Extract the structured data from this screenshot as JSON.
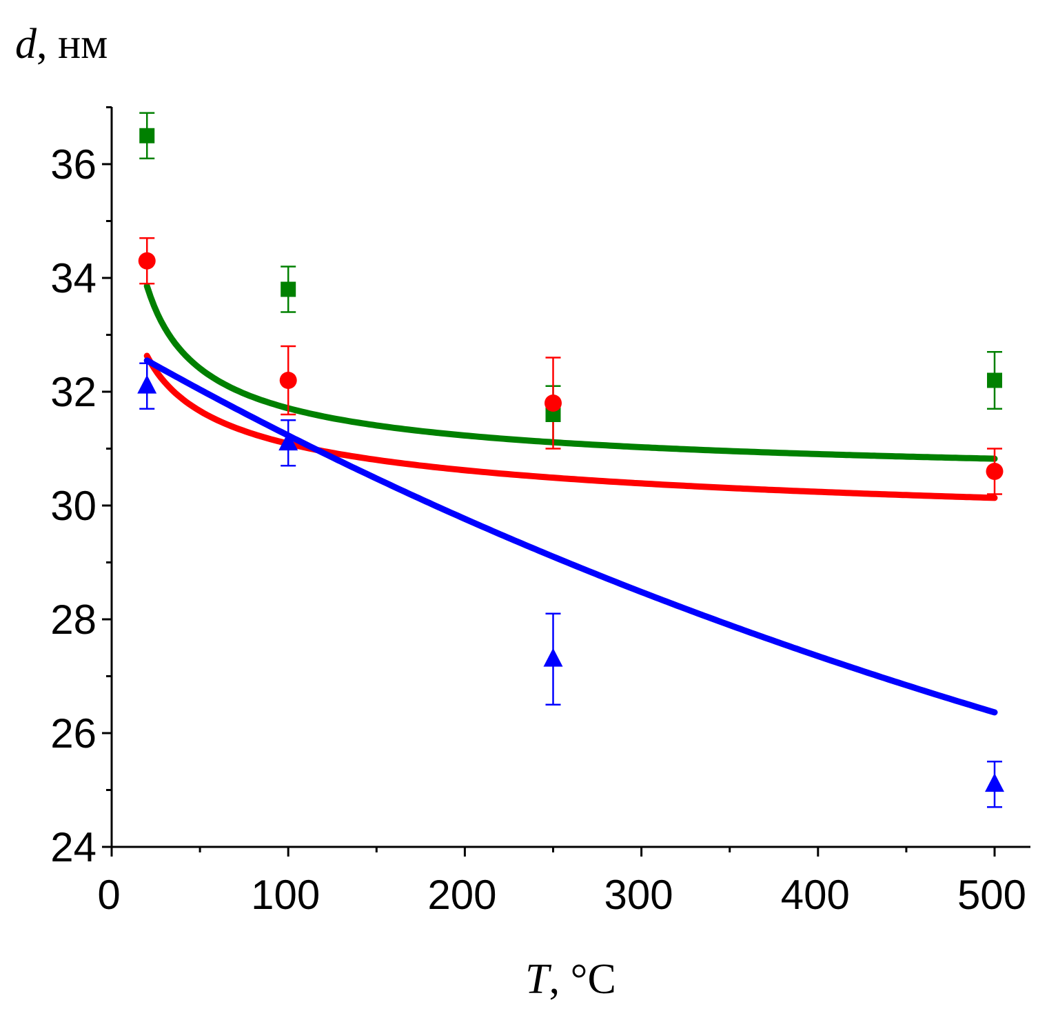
{
  "chart_data": {
    "type": "scatter",
    "title": "",
    "xlabel_var": "T",
    "xlabel_unit": ", °C",
    "ylabel_var": "d",
    "ylabel_unit": ", нм",
    "xlim": [
      0,
      520
    ],
    "ylim": [
      24,
      37
    ],
    "x_major_ticks": [
      0,
      100,
      200,
      300,
      400,
      500
    ],
    "x_tick_labels": [
      "0",
      "100",
      "200",
      "300",
      "400",
      "500"
    ],
    "y_major_ticks": [
      24,
      26,
      28,
      30,
      32,
      34,
      36
    ],
    "y_tick_labels": [
      "24",
      "26",
      "28",
      "30",
      "32",
      "34",
      "36"
    ],
    "grid": false,
    "series": [
      {
        "name": "square",
        "color": "#008000",
        "marker": "square",
        "x": [
          20,
          100,
          250,
          500
        ],
        "y": [
          36.5,
          33.8,
          31.6,
          32.2
        ],
        "err": [
          0.4,
          0.4,
          0.5,
          0.5
        ],
        "fit": {
          "a": 30.2,
          "b": 19.0,
          "c": 0.55
        }
      },
      {
        "name": "circle",
        "color": "#ff0000",
        "marker": "circle",
        "x": [
          20,
          100,
          250,
          500
        ],
        "y": [
          34.3,
          32.2,
          31.8,
          30.6
        ],
        "err": [
          0.4,
          0.6,
          0.8,
          0.4
        ],
        "fit": {
          "a": 28.6,
          "b": 9.9,
          "c": 0.3
        }
      },
      {
        "name": "triangle",
        "color": "#0000ff",
        "marker": "triangle",
        "x": [
          20,
          100,
          250,
          500
        ],
        "y": [
          32.1,
          31.1,
          27.3,
          25.1
        ],
        "err": [
          0.4,
          0.4,
          0.8,
          0.4
        ],
        "fit": {
          "a": 19.3,
          "b": 13.6,
          "k": 0.00131
        }
      }
    ]
  }
}
